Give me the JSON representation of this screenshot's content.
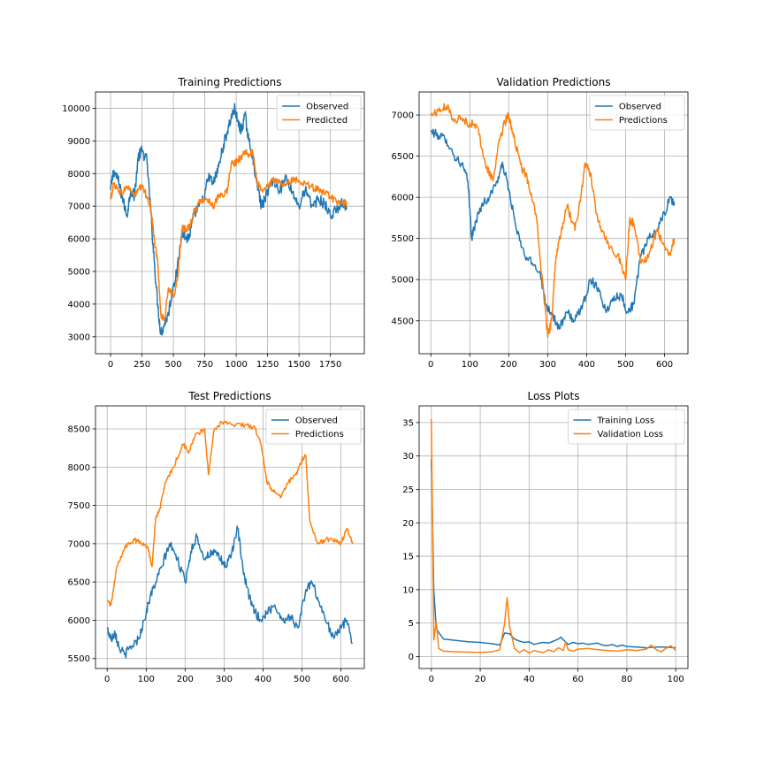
{
  "colors": {
    "observed": "#1f77b4",
    "predicted": "#ff7f0e",
    "grid": "#b0b0b0"
  },
  "chart_data": [
    {
      "type": "line",
      "title": "Training Predictions",
      "xlim": [
        -120,
        2020
      ],
      "ylim": [
        2480,
        10500
      ],
      "xticks": [
        0,
        250,
        500,
        750,
        1000,
        1250,
        1500,
        1750
      ],
      "yticks": [
        3000,
        4000,
        5000,
        6000,
        7000,
        8000,
        9000,
        10000
      ],
      "grid": true,
      "legend": "top-right",
      "series": [
        {
          "name": "Observed",
          "color": "#1f77b4",
          "noise": 180,
          "x": [
            0,
            25,
            60,
            90,
            130,
            160,
            190,
            220,
            250,
            290,
            320,
            350,
            375,
            400,
            430,
            460,
            500,
            530,
            570,
            600,
            630,
            660,
            700,
            740,
            780,
            820,
            860,
            900,
            930,
            960,
            990,
            1010,
            1040,
            1070,
            1100,
            1130,
            1160,
            1200,
            1230,
            1260,
            1300,
            1350,
            1400,
            1450,
            1500,
            1550,
            1600,
            1650,
            1700,
            1750,
            1800,
            1850,
            1880
          ],
          "y": [
            7500,
            8100,
            7800,
            7300,
            6700,
            7500,
            7300,
            8500,
            8700,
            8400,
            6800,
            5200,
            4000,
            3100,
            3400,
            3700,
            4600,
            5000,
            6300,
            6000,
            6100,
            6700,
            7000,
            7200,
            7900,
            7700,
            8200,
            8900,
            9300,
            9700,
            10000,
            9600,
            9300,
            9800,
            9000,
            8600,
            7800,
            7000,
            7200,
            7600,
            7800,
            7500,
            7900,
            7400,
            7000,
            7500,
            7000,
            7200,
            7100,
            6700,
            6900,
            7100,
            6900
          ]
        },
        {
          "name": "Predicted",
          "color": "#ff7f0e",
          "noise": 110,
          "x": [
            0,
            25,
            60,
            90,
            130,
            160,
            190,
            220,
            250,
            290,
            320,
            350,
            375,
            400,
            430,
            460,
            500,
            530,
            570,
            600,
            630,
            660,
            700,
            740,
            780,
            820,
            860,
            900,
            930,
            960,
            990,
            1010,
            1040,
            1070,
            1100,
            1130,
            1160,
            1200,
            1230,
            1260,
            1300,
            1350,
            1400,
            1450,
            1500,
            1550,
            1600,
            1650,
            1700,
            1750,
            1800,
            1850,
            1880
          ],
          "y": [
            7200,
            7700,
            7500,
            7400,
            7600,
            7500,
            7300,
            7500,
            7600,
            7300,
            7000,
            5900,
            5300,
            3700,
            3500,
            4500,
            4200,
            4700,
            6300,
            6300,
            6400,
            6700,
            7100,
            7200,
            7200,
            7000,
            7300,
            7300,
            7500,
            8300,
            8300,
            8400,
            8500,
            8700,
            8500,
            8700,
            7800,
            7500,
            7500,
            7700,
            7800,
            7700,
            7700,
            7800,
            7800,
            7700,
            7600,
            7500,
            7400,
            7300,
            7100,
            7100,
            7100
          ]
        }
      ]
    },
    {
      "type": "line",
      "title": "Validation Predictions",
      "xlim": [
        -30,
        660
      ],
      "ylim": [
        4100,
        7280
      ],
      "xticks": [
        0,
        100,
        200,
        300,
        400,
        500,
        600
      ],
      "yticks": [
        4500,
        5000,
        5500,
        6000,
        6500,
        7000
      ],
      "grid": true,
      "legend": "top-right",
      "series": [
        {
          "name": "Observed",
          "color": "#1f77b4",
          "noise": 55,
          "x": [
            0,
            20,
            40,
            60,
            80,
            95,
            105,
            115,
            130,
            150,
            170,
            185,
            200,
            220,
            240,
            260,
            280,
            295,
            310,
            330,
            350,
            370,
            390,
            410,
            430,
            450,
            470,
            490,
            505,
            520,
            540,
            560,
            580,
            600,
            615,
            625
          ],
          "y": [
            6800,
            6750,
            6700,
            6500,
            6400,
            6200,
            5500,
            5700,
            5900,
            6000,
            6200,
            6400,
            6100,
            5600,
            5300,
            5200,
            5100,
            4700,
            4600,
            4400,
            4600,
            4500,
            4700,
            5000,
            4900,
            4600,
            4800,
            4800,
            4600,
            4700,
            5300,
            5500,
            5600,
            5800,
            6000,
            5900
          ]
        },
        {
          "name": "Predictions",
          "color": "#ff7f0e",
          "noise": 55,
          "x": [
            0,
            20,
            40,
            60,
            80,
            100,
            120,
            140,
            160,
            175,
            190,
            200,
            215,
            230,
            250,
            270,
            290,
            300,
            310,
            320,
            335,
            350,
            370,
            385,
            395,
            410,
            425,
            440,
            460,
            480,
            500,
            510,
            520,
            540,
            560,
            580,
            600,
            615,
            625
          ],
          "y": [
            7000,
            7050,
            7100,
            6950,
            6950,
            6900,
            6850,
            6400,
            6200,
            6700,
            6900,
            7000,
            6700,
            6400,
            6200,
            5800,
            4800,
            4300,
            4500,
            5200,
            5600,
            5900,
            5600,
            6000,
            6400,
            6300,
            5800,
            5600,
            5400,
            5300,
            5000,
            5700,
            5700,
            5200,
            5300,
            5600,
            5400,
            5300,
            5500
          ]
        }
      ]
    },
    {
      "type": "line",
      "title": "Test Predictions",
      "xlim": [
        -30,
        660
      ],
      "ylim": [
        5370,
        8800
      ],
      "xticks": [
        0,
        100,
        200,
        300,
        400,
        500,
        600
      ],
      "yticks": [
        5500,
        6000,
        6500,
        7000,
        7500,
        8000,
        8500
      ],
      "grid": true,
      "legend": "top-right",
      "series": [
        {
          "name": "Observed",
          "color": "#1f77b4",
          "noise": 60,
          "x": [
            0,
            10,
            20,
            30,
            45,
            60,
            80,
            95,
            110,
            125,
            140,
            160,
            180,
            200,
            215,
            230,
            250,
            270,
            290,
            305,
            320,
            335,
            350,
            365,
            380,
            395,
            410,
            430,
            450,
            470,
            490,
            510,
            525,
            540,
            560,
            580,
            600,
            615,
            630
          ],
          "y": [
            5900,
            5750,
            5850,
            5650,
            5550,
            5650,
            5750,
            6000,
            6300,
            6500,
            6700,
            7000,
            6800,
            6500,
            6900,
            7100,
            6800,
            6900,
            6800,
            6700,
            6900,
            7200,
            6600,
            6300,
            6100,
            6000,
            6100,
            6200,
            6000,
            6050,
            5900,
            6400,
            6500,
            6300,
            6000,
            5800,
            5900,
            6000,
            5700
          ]
        },
        {
          "name": "Predictions",
          "color": "#ff7f0e",
          "noise": 30,
          "x": [
            0,
            10,
            25,
            45,
            70,
            90,
            105,
            115,
            125,
            135,
            150,
            170,
            195,
            210,
            225,
            250,
            260,
            275,
            300,
            330,
            360,
            380,
            395,
            410,
            425,
            445,
            465,
            485,
            500,
            510,
            520,
            540,
            560,
            580,
            600,
            615,
            630
          ],
          "y": [
            6250,
            6200,
            6700,
            6950,
            7050,
            7000,
            6950,
            6700,
            7350,
            7450,
            7800,
            8000,
            8300,
            8200,
            8400,
            8500,
            7900,
            8500,
            8600,
            8550,
            8550,
            8500,
            8300,
            7800,
            7700,
            7600,
            7800,
            7900,
            8100,
            8150,
            7300,
            7000,
            7050,
            7050,
            7000,
            7200,
            7000
          ]
        }
      ]
    },
    {
      "type": "line",
      "title": "Loss Plots",
      "xlim": [
        -5,
        105
      ],
      "ylim": [
        -1.8,
        37.5
      ],
      "xticks": [
        0,
        20,
        40,
        60,
        80,
        100
      ],
      "yticks": [
        0,
        5,
        10,
        15,
        20,
        25,
        30,
        35
      ],
      "grid": true,
      "legend": "top-right",
      "series": [
        {
          "name": "Training Loss",
          "color": "#1f77b4",
          "noise": 0,
          "x": [
            0,
            1,
            2,
            3,
            5,
            10,
            15,
            20,
            25,
            28,
            30,
            32,
            34,
            36,
            38,
            40,
            42,
            44,
            46,
            48,
            50,
            52,
            53,
            54,
            56,
            58,
            60,
            62,
            64,
            66,
            68,
            70,
            72,
            74,
            76,
            78,
            80,
            84,
            88,
            92,
            96,
            100
          ],
          "y": [
            29.5,
            10,
            4.2,
            3.6,
            2.6,
            2.4,
            2.2,
            2.1,
            1.9,
            1.7,
            3.5,
            3.4,
            2.6,
            2.3,
            2.1,
            2.2,
            1.8,
            2.0,
            2.1,
            2.0,
            2.3,
            2.6,
            2.9,
            2.5,
            1.8,
            2.1,
            1.9,
            2.0,
            1.8,
            1.9,
            2.0,
            1.7,
            1.6,
            1.8,
            1.5,
            1.7,
            1.5,
            1.4,
            1.3,
            1.4,
            1.4,
            1.3
          ]
        },
        {
          "name": "Validation Loss",
          "color": "#ff7f0e",
          "noise": 0,
          "x": [
            0,
            1,
            2,
            3,
            5,
            10,
            15,
            20,
            25,
            28,
            30,
            31,
            32,
            34,
            36,
            38,
            40,
            42,
            44,
            46,
            48,
            50,
            52,
            54,
            55,
            56,
            58,
            60,
            64,
            68,
            72,
            76,
            80,
            84,
            88,
            90,
            92,
            94,
            96,
            98,
            100
          ],
          "y": [
            35.5,
            2.5,
            5.2,
            1.2,
            0.8,
            0.7,
            0.65,
            0.6,
            0.7,
            1.0,
            5.0,
            8.8,
            4.5,
            1.2,
            0.6,
            1.0,
            0.5,
            0.9,
            0.7,
            0.6,
            1.0,
            0.7,
            1.3,
            0.9,
            2.2,
            1.0,
            0.8,
            1.1,
            1.2,
            1.0,
            0.9,
            0.8,
            1.0,
            0.9,
            1.1,
            1.7,
            1.0,
            0.7,
            1.2,
            1.6,
            0.9
          ]
        }
      ]
    }
  ]
}
